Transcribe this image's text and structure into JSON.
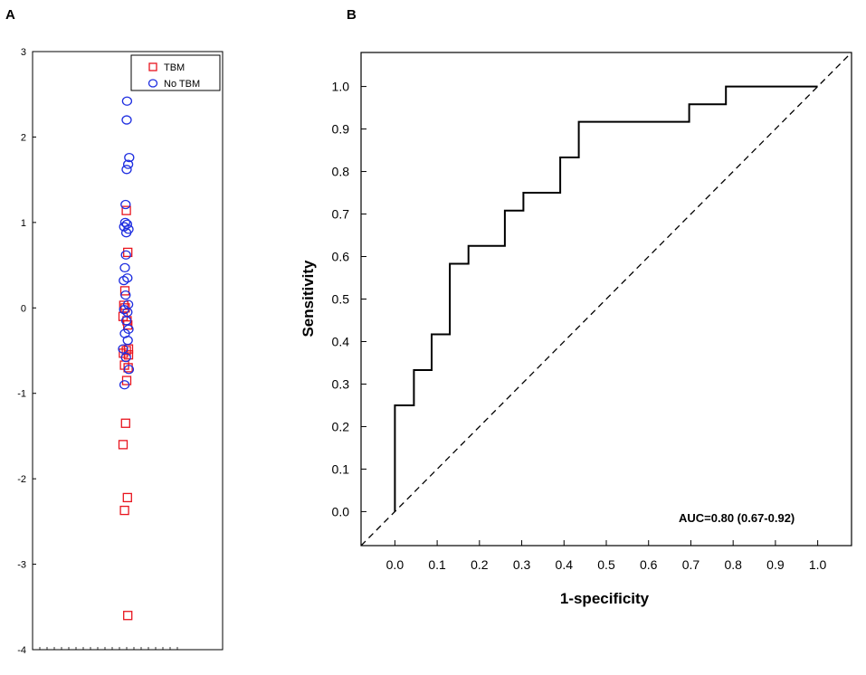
{
  "chart_data": [
    {
      "panel_label": "A",
      "type": "scatter",
      "ylim": [
        -4,
        3
      ],
      "yticks": [
        "3",
        "2",
        "1",
        "0",
        "-1",
        "-2",
        "-3",
        "-4"
      ],
      "legend": {
        "placement": "top-right",
        "entries": [
          "TBM",
          "No TBM"
        ]
      },
      "series": [
        {
          "name": "TBM",
          "color": "#e8141e",
          "marker": "square",
          "points": [
            [
              0.18,
              1.14
            ],
            [
              0.26,
              0.65
            ],
            [
              0.1,
              0.2
            ],
            [
              0.04,
              0.03
            ],
            [
              0.12,
              0.0
            ],
            [
              0.0,
              -0.1
            ],
            [
              0.22,
              -0.15
            ],
            [
              0.26,
              -0.2
            ],
            [
              0.3,
              -0.48
            ],
            [
              0.18,
              -0.5
            ],
            [
              0.02,
              -0.53
            ],
            [
              0.3,
              -0.55
            ],
            [
              0.08,
              -0.67
            ],
            [
              0.28,
              -0.7
            ],
            [
              0.2,
              -0.85
            ],
            [
              0.14,
              -1.35
            ],
            [
              0.0,
              -1.6
            ],
            [
              0.24,
              -2.22
            ],
            [
              0.08,
              -2.37
            ],
            [
              0.26,
              -3.6
            ]
          ]
        },
        {
          "name": "No TBM",
          "color": "#1e2ee0",
          "marker": "circle",
          "points": [
            [
              0.22,
              2.42
            ],
            [
              0.2,
              2.2
            ],
            [
              0.34,
              1.76
            ],
            [
              0.28,
              1.68
            ],
            [
              0.2,
              1.62
            ],
            [
              0.14,
              1.21
            ],
            [
              0.12,
              1.0
            ],
            [
              0.22,
              0.98
            ],
            [
              0.06,
              0.95
            ],
            [
              0.3,
              0.92
            ],
            [
              0.18,
              0.88
            ],
            [
              0.16,
              0.62
            ],
            [
              0.1,
              0.47
            ],
            [
              0.24,
              0.35
            ],
            [
              0.04,
              0.32
            ],
            [
              0.14,
              0.15
            ],
            [
              0.28,
              0.04
            ],
            [
              0.06,
              -0.02
            ],
            [
              0.24,
              -0.05
            ],
            [
              0.18,
              -0.15
            ],
            [
              0.3,
              -0.25
            ],
            [
              0.1,
              -0.3
            ],
            [
              0.26,
              -0.38
            ],
            [
              0.0,
              -0.48
            ],
            [
              0.16,
              -0.58
            ],
            [
              0.32,
              -0.72
            ],
            [
              0.08,
              -0.9
            ]
          ]
        }
      ]
    },
    {
      "panel_label": "B",
      "type": "line",
      "xlabel": "1-specificity",
      "ylabel": "Sensitivity",
      "xlim": [
        -0.08,
        1.08
      ],
      "ylim": [
        -0.08,
        1.08
      ],
      "xticks": [
        "0.0",
        "0.1",
        "0.2",
        "0.3",
        "0.4",
        "0.5",
        "0.6",
        "0.7",
        "0.8",
        "0.9",
        "1.0"
      ],
      "yticks": [
        "0.0",
        "0.1",
        "0.2",
        "0.3",
        "0.4",
        "0.5",
        "0.6",
        "0.7",
        "0.8",
        "0.9",
        "1.0"
      ],
      "annotation": "AUC=0.80 (0.67-0.92)",
      "series": [
        {
          "name": "ROC curve",
          "style": "solid",
          "points": [
            [
              0.0,
              0.0
            ],
            [
              0.0,
              0.25
            ],
            [
              0.045,
              0.25
            ],
            [
              0.045,
              0.333
            ],
            [
              0.087,
              0.333
            ],
            [
              0.087,
              0.417
            ],
            [
              0.13,
              0.417
            ],
            [
              0.13,
              0.583
            ],
            [
              0.174,
              0.583
            ],
            [
              0.174,
              0.625
            ],
            [
              0.26,
              0.625
            ],
            [
              0.26,
              0.708
            ],
            [
              0.304,
              0.708
            ],
            [
              0.304,
              0.75
            ],
            [
              0.391,
              0.75
            ],
            [
              0.391,
              0.833
            ],
            [
              0.435,
              0.833
            ],
            [
              0.435,
              0.917
            ],
            [
              0.696,
              0.917
            ],
            [
              0.696,
              0.958
            ],
            [
              0.783,
              0.958
            ],
            [
              0.783,
              1.0
            ],
            [
              1.0,
              1.0
            ]
          ]
        },
        {
          "name": "Reference line",
          "style": "dashed",
          "points": [
            [
              -0.08,
              -0.08
            ],
            [
              1.08,
              1.08
            ]
          ]
        }
      ]
    }
  ]
}
